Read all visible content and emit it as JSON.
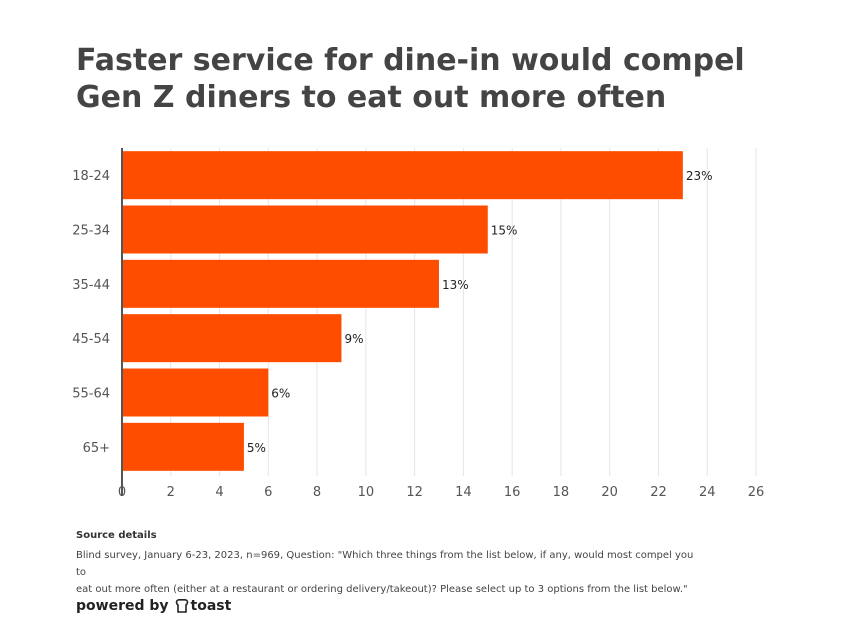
{
  "title_lines": [
    "Faster service for dine-in would compel",
    "Gen Z diners to eat out more often"
  ],
  "chart_data": {
    "type": "bar",
    "orientation": "horizontal",
    "title": "Faster service for dine-in would compel Gen Z diners to eat out more often",
    "categories": [
      "18-24",
      "25-34",
      "35-44",
      "45-54",
      "55-64",
      "65+"
    ],
    "values": [
      23,
      15,
      13,
      9,
      6,
      5
    ],
    "value_labels": [
      "23%",
      "15%",
      "13%",
      "9%",
      "6%",
      "5%"
    ],
    "x_ticks": [
      0,
      2,
      4,
      6,
      8,
      10,
      12,
      14,
      16,
      18,
      20,
      22,
      24,
      26
    ],
    "xlim": [
      0,
      26
    ],
    "xlabel": "",
    "ylabel": "",
    "grid": true,
    "bar_color": "#ff4d00"
  },
  "source": {
    "heading": "Source details",
    "line1": "Blind survey, January 6-23, 2023, n=969, Question: \"Which three things from the list below, if any, would most compel you to",
    "line2": "eat out more often (either at a restaurant or ordering delivery/takeout)? Please select up to 3 options from the list below.\""
  },
  "footer": {
    "powered_by": "powered by",
    "brand": "toast",
    "brand_icon": "toast-logo-icon"
  }
}
